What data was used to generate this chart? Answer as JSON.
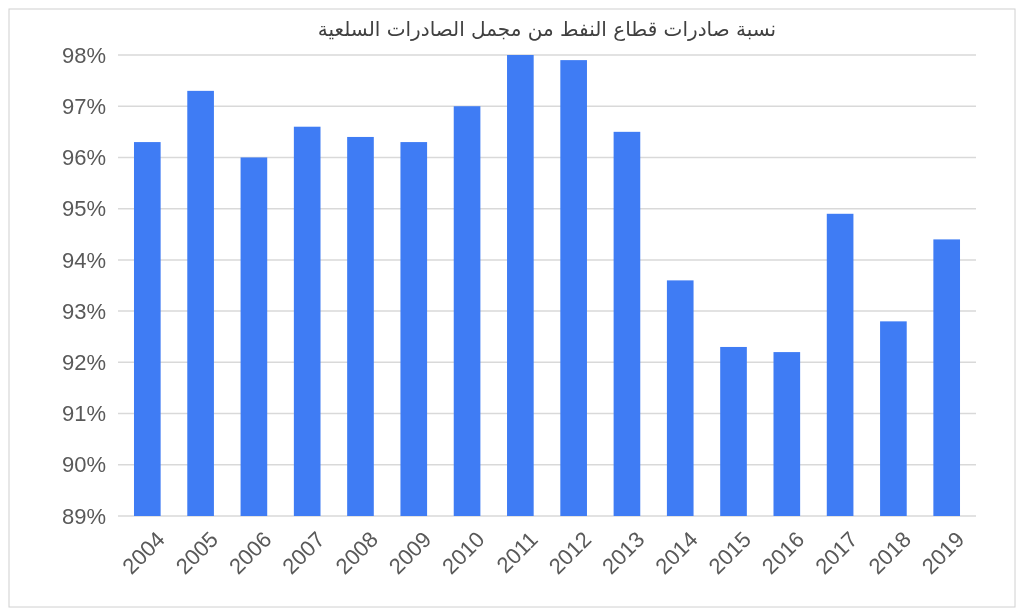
{
  "chart_data": {
    "type": "bar",
    "title": "نسبة صادرات قطاع النفط من مجمل الصادرات السلعية",
    "categories": [
      "2004",
      "2005",
      "2006",
      "2007",
      "2008",
      "2009",
      "2010",
      "2011",
      "2012",
      "2013",
      "2014",
      "2015",
      "2016",
      "2017",
      "2018",
      "2019"
    ],
    "values": [
      96.3,
      97.3,
      96.0,
      96.6,
      96.4,
      96.3,
      97.0,
      98.0,
      97.9,
      96.5,
      93.6,
      92.3,
      92.2,
      94.9,
      92.8,
      94.4
    ],
    "color": "#3f7cf4",
    "ylim": [
      89,
      98
    ],
    "yticks": [
      {
        "value": 89,
        "label": "89%"
      },
      {
        "value": 90,
        "label": "90%"
      },
      {
        "value": 91,
        "label": "91%"
      },
      {
        "value": 92,
        "label": "92%"
      },
      {
        "value": 93,
        "label": "93%"
      },
      {
        "value": 94,
        "label": "94%"
      },
      {
        "value": 95,
        "label": "95%"
      },
      {
        "value": 96,
        "label": "96%"
      },
      {
        "value": 97,
        "label": "97%"
      },
      {
        "value": 98,
        "label": "98%"
      }
    ],
    "grid": true
  }
}
